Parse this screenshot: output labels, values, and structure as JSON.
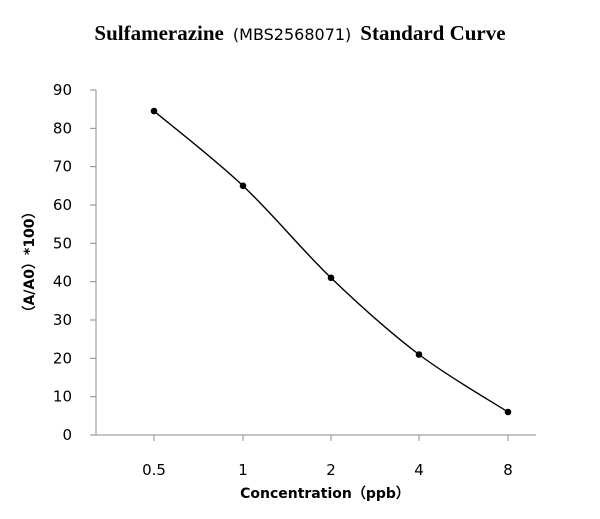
{
  "chart_data": {
    "type": "line",
    "title": {
      "compound": "Sulfamerazine",
      "catalog": "(MBS2568071)",
      "suffix": "Standard Curve"
    },
    "xlabel": "Concentration（ppb）",
    "ylabel": "（A/A0）*100）",
    "categories": [
      "0.5",
      "1",
      "2",
      "4",
      "8"
    ],
    "series": [
      {
        "name": "Standard Curve",
        "values": [
          84.5,
          65,
          41,
          21,
          6
        ]
      }
    ],
    "ylim": [
      0,
      90
    ],
    "yticks": [
      0,
      10,
      20,
      30,
      40,
      50,
      60,
      70,
      80,
      90
    ],
    "grid": false,
    "legend": "none"
  }
}
